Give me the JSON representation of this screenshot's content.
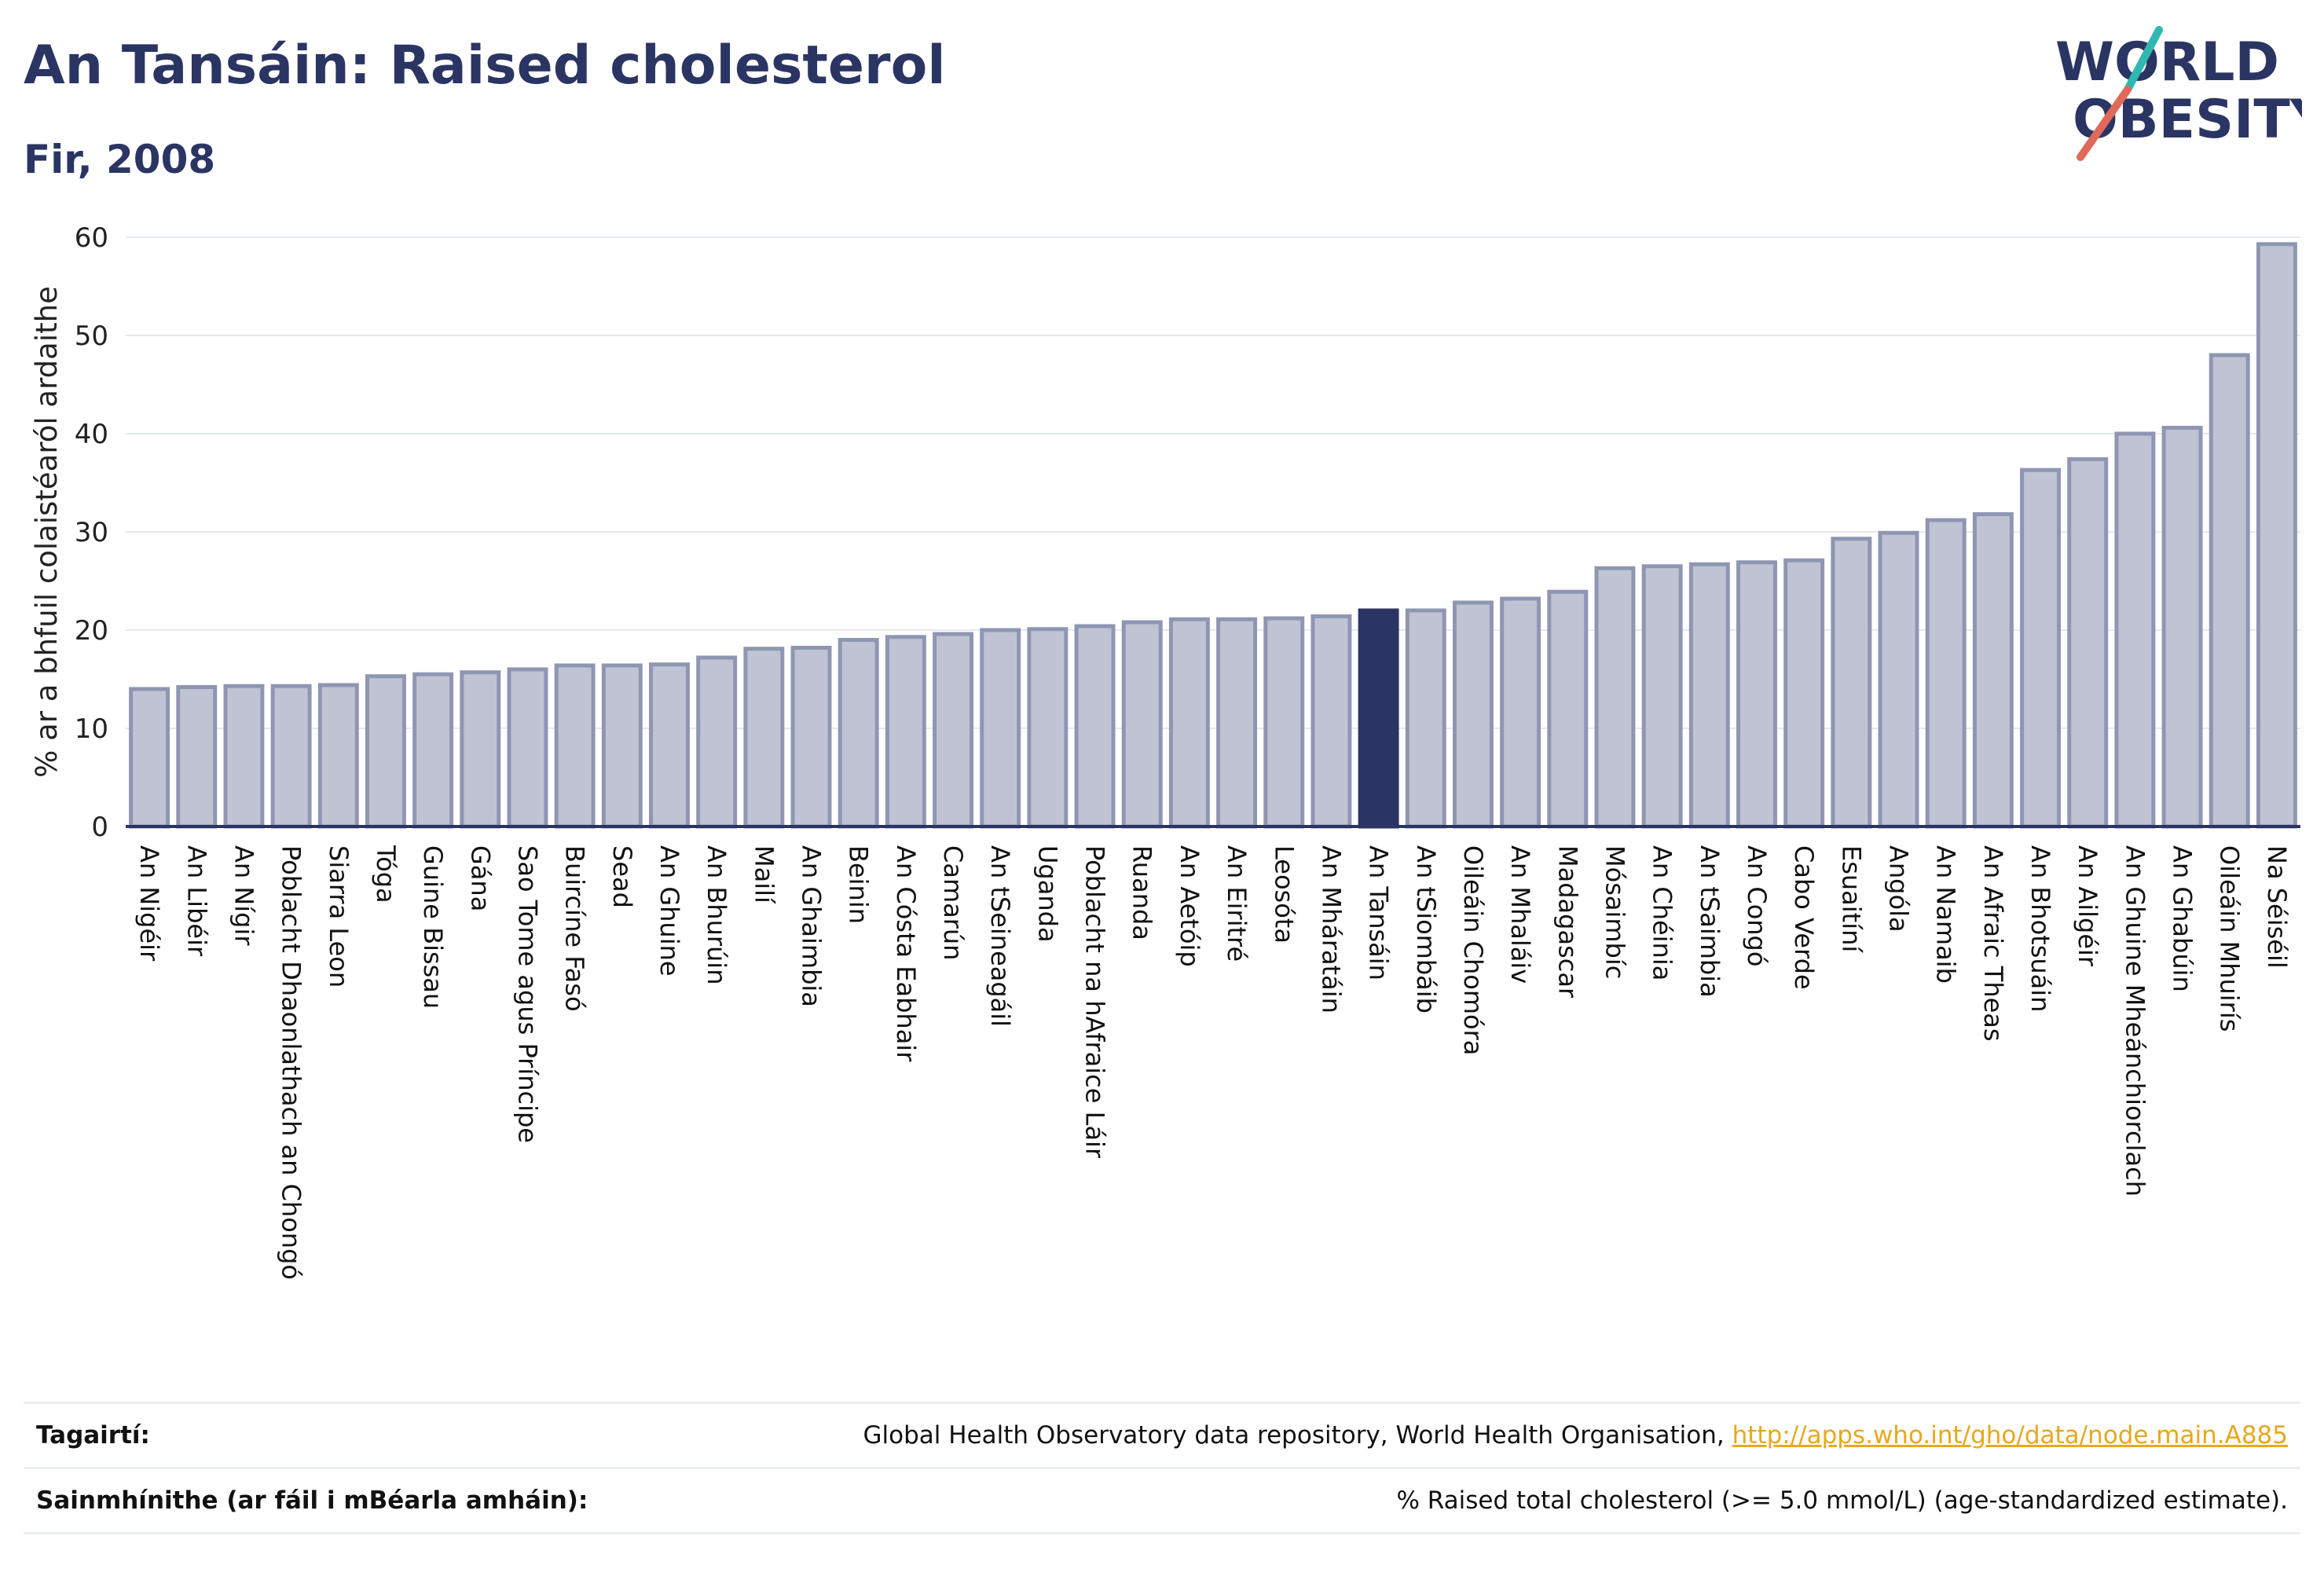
{
  "header": {
    "title": "An Tansáin: Raised cholesterol",
    "subtitle": "Fir, 2008"
  },
  "logo": {
    "line1": "WORLD",
    "line2": "OBESITY",
    "accent_teal": "#2fb8b0",
    "accent_red": "#e06a5a"
  },
  "colors": {
    "bar": "#bfc3d3",
    "bar_border": "#8f96b2",
    "highlight": "#2b3563",
    "axis": "#2b3563",
    "grid": "#e6e8ef"
  },
  "chart_data": {
    "type": "bar",
    "ylabel": "% ar a bhfuil colaistéaról ardaithe",
    "xlabel": "",
    "ylim": [
      0,
      60
    ],
    "yticks": [
      0,
      10,
      20,
      30,
      40,
      50,
      60
    ],
    "highlight": "An Tansáin",
    "categories": [
      "An Nigéir",
      "An Libéir",
      "An Nígir",
      "Poblacht Dhaonlathach an Chongó",
      "Siarra Leon",
      "Tóga",
      "Guine Bissau",
      "Gána",
      "Sao Tome agus Príncipe",
      "Buircíne Fasó",
      "Sead",
      "An Ghuine",
      "An Bhurúin",
      "Mailí",
      "An Ghaimbia",
      "Beinin",
      "An Cósta Eabhair",
      "Camarún",
      "An tSeineagáil",
      "Uganda",
      "Poblacht na hAfraice Láir",
      "Ruanda",
      "An Aetóip",
      "An Eiritré",
      "Leosóta",
      "An Mháratáin",
      "An Tansáin",
      "An tSiombáib",
      "Oileáin Chomóra",
      "An Mhaláiv",
      "Madagascar",
      "Mósaimbíc",
      "An Chéinia",
      "An tSaimbia",
      "An Congó",
      "Cabo Verde",
      "Esuaitíní",
      "Angóla",
      "An Namaib",
      "An Afraic Theas",
      "An Bhotsuáin",
      "An Ailgéir",
      "An Ghuine Mheánchiorclach",
      "An Ghabúin",
      "Oileáin Mhuirís",
      "Na Séiséil"
    ],
    "values": [
      14.0,
      14.2,
      14.3,
      14.3,
      14.4,
      15.3,
      15.5,
      15.7,
      16.0,
      16.4,
      16.4,
      16.5,
      17.2,
      18.1,
      18.2,
      19.0,
      19.3,
      19.6,
      20.0,
      20.1,
      20.4,
      20.8,
      21.1,
      21.1,
      21.2,
      21.4,
      22.0,
      22.0,
      22.8,
      23.2,
      23.9,
      26.3,
      26.5,
      26.7,
      26.9,
      27.1,
      29.3,
      29.9,
      31.2,
      31.8,
      36.3,
      37.4,
      40.0,
      40.6,
      48.0,
      59.3
    ]
  },
  "footer": {
    "refs_label": "Tagairtí:",
    "refs_text": "Global Health Observatory data repository, World Health Organisation,",
    "refs_link": "http://apps.who.int/gho/data/node.main.A885",
    "defs_label": "Sainmhínithe (ar fáil i mBéarla amháin):",
    "defs_text": "% Raised total cholesterol (>= 5.0 mmol/L) (age-standardized estimate)."
  }
}
